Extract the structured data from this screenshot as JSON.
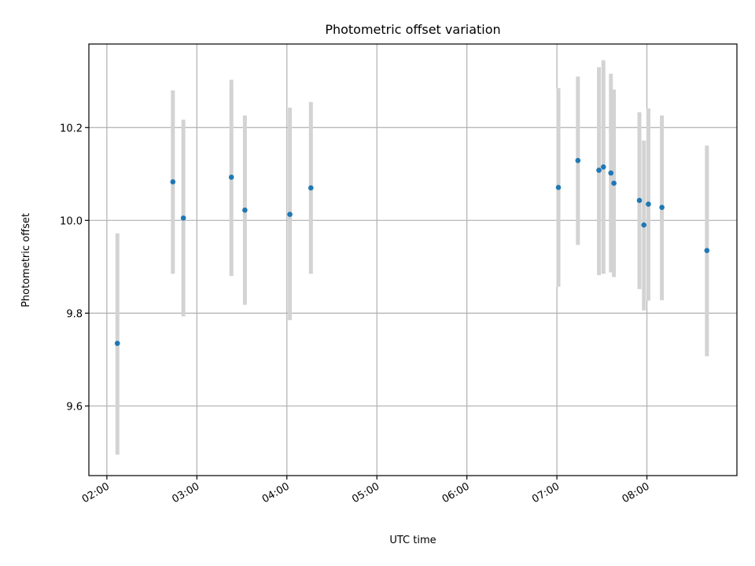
{
  "chart_data": {
    "type": "scatter",
    "title": "Photometric offset variation",
    "xlabel": "UTC time",
    "ylabel": "Photometric offset",
    "xlim": [
      "01:48",
      "09:00"
    ],
    "ylim": [
      9.45,
      10.38
    ],
    "x_ticks": [
      "02:00",
      "03:00",
      "04:00",
      "05:00",
      "06:00",
      "07:00",
      "08:00"
    ],
    "y_ticks": [
      9.6,
      9.8,
      10.0,
      10.2
    ],
    "y_tick_labels": [
      "9.6",
      "9.8",
      "10.0",
      "10.2"
    ],
    "grid": true,
    "marker_color": "#1f77b4",
    "errorbar_color": "#d3d3d3",
    "points": [
      {
        "x": "02:07",
        "y": 9.735,
        "yerr_low": 9.495,
        "yerr_high": 9.972
      },
      {
        "x": "02:44",
        "y": 10.083,
        "yerr_low": 9.885,
        "yerr_high": 10.28
      },
      {
        "x": "02:51",
        "y": 10.005,
        "yerr_low": 9.793,
        "yerr_high": 10.217
      },
      {
        "x": "03:23",
        "y": 10.093,
        "yerr_low": 9.88,
        "yerr_high": 10.303
      },
      {
        "x": "03:32",
        "y": 10.022,
        "yerr_low": 9.818,
        "yerr_high": 10.226
      },
      {
        "x": "04:02",
        "y": 10.013,
        "yerr_low": 9.785,
        "yerr_high": 10.243
      },
      {
        "x": "04:16",
        "y": 10.07,
        "yerr_low": 9.885,
        "yerr_high": 10.255
      },
      {
        "x": "07:01",
        "y": 10.071,
        "yerr_low": 9.857,
        "yerr_high": 10.285
      },
      {
        "x": "07:14",
        "y": 10.129,
        "yerr_low": 9.947,
        "yerr_high": 10.31
      },
      {
        "x": "07:28",
        "y": 10.108,
        "yerr_low": 9.882,
        "yerr_high": 10.33
      },
      {
        "x": "07:31",
        "y": 10.115,
        "yerr_low": 9.885,
        "yerr_high": 10.345
      },
      {
        "x": "07:36",
        "y": 10.102,
        "yerr_low": 9.888,
        "yerr_high": 10.316
      },
      {
        "x": "07:38",
        "y": 10.08,
        "yerr_low": 9.878,
        "yerr_high": 10.282
      },
      {
        "x": "07:55",
        "y": 10.043,
        "yerr_low": 9.852,
        "yerr_high": 10.233
      },
      {
        "x": "07:58",
        "y": 9.99,
        "yerr_low": 9.806,
        "yerr_high": 10.172
      },
      {
        "x": "08:01",
        "y": 10.035,
        "yerr_low": 9.827,
        "yerr_high": 10.241
      },
      {
        "x": "08:10",
        "y": 10.028,
        "yerr_low": 9.828,
        "yerr_high": 10.226
      },
      {
        "x": "08:40",
        "y": 9.935,
        "yerr_low": 9.707,
        "yerr_high": 10.161
      }
    ]
  }
}
